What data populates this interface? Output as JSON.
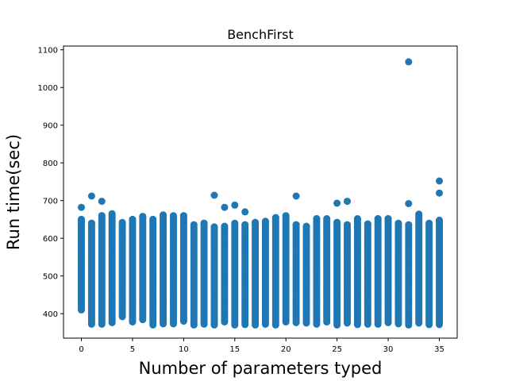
{
  "chart_data": {
    "type": "scatter",
    "title": "BenchFirst",
    "xlabel": "Number of parameters typed",
    "ylabel": "Run time(sec)",
    "xlim": [
      -1.75,
      36.75
    ],
    "ylim": [
      335,
      1110
    ],
    "xticks": [
      0,
      5,
      10,
      15,
      20,
      25,
      30,
      35
    ],
    "yticks": [
      400,
      500,
      600,
      700,
      800,
      900,
      1000,
      1100
    ],
    "grid": false,
    "marker_color": "#1f77b4",
    "series": [
      {
        "ranges": [
          [
            0,
            410,
            650
          ],
          [
            1,
            372,
            640
          ],
          [
            2,
            372,
            660
          ],
          [
            3,
            376,
            665
          ],
          [
            4,
            392,
            642
          ],
          [
            5,
            378,
            650
          ],
          [
            6,
            384,
            658
          ],
          [
            7,
            370,
            650
          ],
          [
            8,
            373,
            662
          ],
          [
            9,
            373,
            660
          ],
          [
            10,
            380,
            660
          ],
          [
            11,
            370,
            636
          ],
          [
            12,
            372,
            640
          ],
          [
            13,
            370,
            630
          ],
          [
            14,
            378,
            632
          ],
          [
            15,
            370,
            640
          ],
          [
            16,
            371,
            636
          ],
          [
            17,
            370,
            642
          ],
          [
            18,
            372,
            645
          ],
          [
            19,
            370,
            655
          ],
          [
            20,
            378,
            660
          ],
          [
            21,
            376,
            636
          ],
          [
            22,
            375,
            632
          ],
          [
            23,
            372,
            652
          ],
          [
            24,
            378,
            652
          ],
          [
            25,
            370,
            642
          ],
          [
            26,
            375,
            636
          ],
          [
            27,
            371,
            652
          ],
          [
            28,
            372,
            638
          ],
          [
            29,
            372,
            652
          ],
          [
            30,
            376,
            652
          ],
          [
            31,
            373,
            640
          ],
          [
            32,
            370,
            636
          ],
          [
            33,
            375,
            664
          ],
          [
            34,
            371,
            640
          ],
          [
            35,
            371,
            648
          ]
        ],
        "outliers": [
          [
            0,
            682
          ],
          [
            1,
            712
          ],
          [
            2,
            698
          ],
          [
            13,
            714
          ],
          [
            14,
            682
          ],
          [
            15,
            688
          ],
          [
            16,
            670
          ],
          [
            21,
            712
          ],
          [
            25,
            693
          ],
          [
            26,
            698
          ],
          [
            32,
            1068
          ],
          [
            32,
            692
          ],
          [
            35,
            752
          ],
          [
            35,
            720
          ]
        ]
      }
    ]
  }
}
